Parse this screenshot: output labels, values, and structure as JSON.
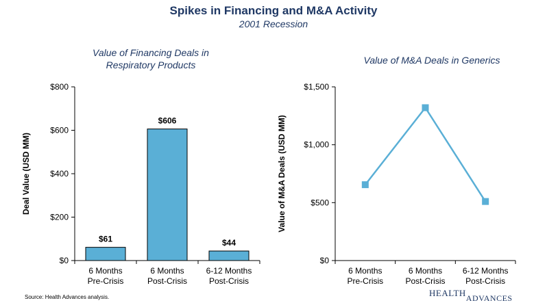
{
  "header": {
    "title": "Spikes in Financing and M&A Activity",
    "subtitle": "2001 Recession"
  },
  "chart_data": [
    {
      "type": "bar",
      "title_lines": [
        "Value of Financing Deals in",
        "Respiratory Products"
      ],
      "ylabel": "Deal Value (USD MM)",
      "categories": [
        [
          "6 Months",
          "Pre-Crisis"
        ],
        [
          "6 Months",
          "Post-Crisis"
        ],
        [
          "6-12 Months",
          "Post-Crisis"
        ]
      ],
      "values": [
        61,
        606,
        44
      ],
      "data_labels": [
        "$61",
        "$606",
        "$44"
      ],
      "ylim": [
        0,
        800
      ],
      "yticks": [
        0,
        200,
        400,
        600,
        800
      ],
      "ytick_labels": [
        "$0",
        "$200",
        "$400",
        "$600",
        "$800"
      ],
      "color": "#5aafd6",
      "grid": false
    },
    {
      "type": "line",
      "title_lines": [
        "Value of M&A Deals in Generics"
      ],
      "ylabel": "Value of M&A Deals (USD MM)",
      "categories": [
        [
          "6 Months",
          "Pre-Crisis"
        ],
        [
          "6 Months",
          "Post-Crisis"
        ],
        [
          "6-12 Months",
          "Post-Crisis"
        ]
      ],
      "values": [
        655,
        1320,
        510
      ],
      "ylim": [
        0,
        1500
      ],
      "yticks": [
        0,
        500,
        1000,
        1500
      ],
      "ytick_labels": [
        "$0",
        "$500",
        "$1,000",
        "$1,500"
      ],
      "color": "#5aafd6",
      "grid": false
    }
  ],
  "footer": {
    "source": "Source:  Health Advances analysis.",
    "logo_main": "HEALTH",
    "logo_sub": "ADVANCES"
  }
}
